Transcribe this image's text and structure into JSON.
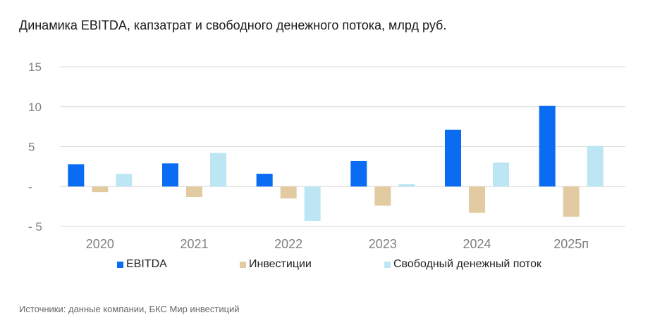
{
  "title": "Динамика EBITDA, капзатрат и свободного денежного потока, млрд руб.",
  "source": "Источники: данные компании, БКС Мир инвестиций",
  "colors": {
    "ebitda": "#0a6cf2",
    "invest": "#e2cba0",
    "fcf": "#bde6f5",
    "grid": "#d9d9d9",
    "tick": "#7f7f7f"
  },
  "chart_data": {
    "type": "bar",
    "title": "Динамика EBITDA, капзатрат и свободного денежного потока, млрд руб.",
    "categories": [
      "2020",
      "2021",
      "2022",
      "2023",
      "2024",
      "2025п"
    ],
    "series": [
      {
        "name": "EBITDA",
        "values": [
          2.8,
          2.9,
          1.6,
          3.2,
          7.1,
          10.1
        ]
      },
      {
        "name": "Инвестиции",
        "values": [
          -0.7,
          -1.3,
          -1.5,
          -2.4,
          -3.3,
          -3.8
        ]
      },
      {
        "name": "Свободный денежный поток",
        "values": [
          1.6,
          4.2,
          -4.3,
          0.3,
          3.0,
          5.1
        ]
      }
    ],
    "y_ticks": [
      {
        "value": 15,
        "label": "15"
      },
      {
        "value": 10,
        "label": "10"
      },
      {
        "value": 5,
        "label": "5"
      },
      {
        "value": 0,
        "label": "-"
      },
      {
        "value": -5,
        "label": "- 5"
      }
    ],
    "ylim": [
      -5,
      15
    ],
    "grid": true,
    "legend_position": "bottom"
  }
}
